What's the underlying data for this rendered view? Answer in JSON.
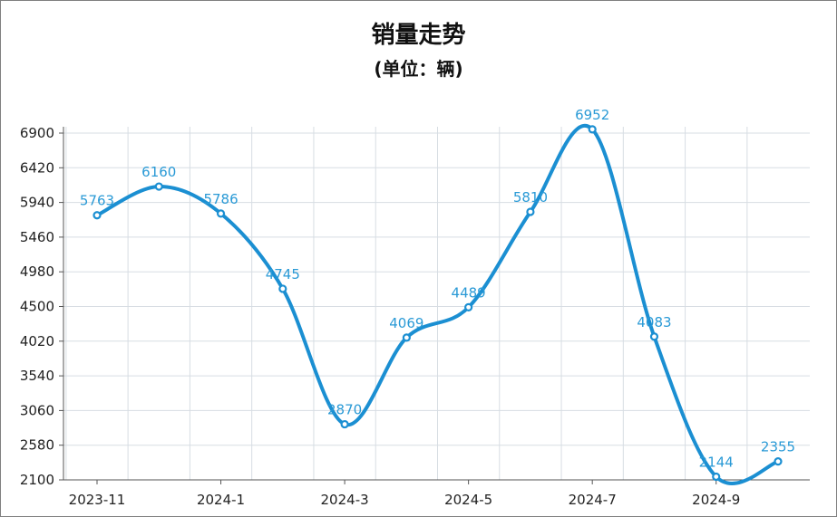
{
  "chart_data": {
    "type": "line",
    "title": "销量走势",
    "subtitle": "(单位：辆)",
    "xlabel": "",
    "ylabel": "",
    "x_tick_labels": [
      "2023-11",
      "2024-1",
      "2024-3",
      "2024-5",
      "2024-7",
      "2024-9"
    ],
    "y_tick_labels": [
      "2100",
      "2580",
      "3060",
      "3540",
      "4020",
      "4500",
      "4980",
      "5460",
      "5940",
      "6420",
      "6900"
    ],
    "ylim": [
      2100,
      6900
    ],
    "grid": true,
    "series": [
      {
        "values": [
          5763,
          6160,
          5786,
          4745,
          2870,
          4069,
          4489,
          5810,
          6952,
          4083,
          2144,
          2355
        ],
        "labels": [
          "5763",
          "6160",
          "5786",
          "4745",
          "2870",
          "4069",
          "4489",
          "5810",
          "6952",
          "4083",
          "2144",
          "2355"
        ],
        "color": "#1b8fd2"
      }
    ]
  }
}
